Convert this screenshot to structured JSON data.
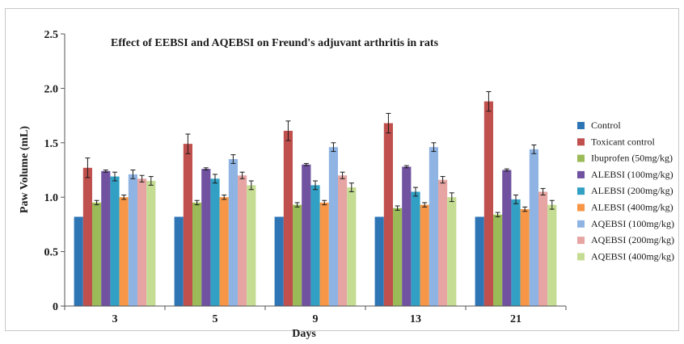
{
  "chart_data": {
    "type": "bar",
    "title": "Effect of EEBSI and AQEBSI on Freund's adjuvant arthritis in rats",
    "xlabel": "Days",
    "ylabel": "Paw Volume (mL)",
    "ylim": [
      0,
      2.5
    ],
    "yticks": [
      "0",
      "0.5",
      "1.0",
      "1.5",
      "2.0",
      "2.5"
    ],
    "categories": [
      "3",
      "5",
      "9",
      "13",
      "21"
    ],
    "grid": false,
    "legend_position": "right",
    "series": [
      {
        "name": "Control",
        "color": "#2e75b6",
        "values": [
          0.82,
          0.82,
          0.82,
          0.82,
          0.82
        ],
        "errors": [
          0,
          0,
          0,
          0,
          0
        ]
      },
      {
        "name": "Toxicant control",
        "color": "#c0504d",
        "values": [
          1.27,
          1.49,
          1.61,
          1.68,
          1.88
        ],
        "errors": [
          0.09,
          0.09,
          0.09,
          0.09,
          0.09
        ]
      },
      {
        "name": "Ibuprofen (50mg/kg)",
        "color": "#9bbb59",
        "values": [
          0.95,
          0.95,
          0.93,
          0.9,
          0.84
        ],
        "errors": [
          0.02,
          0.02,
          0.02,
          0.02,
          0.02
        ]
      },
      {
        "name": "ALEBSI (100mg/kg)",
        "color": "#7052a0",
        "values": [
          1.24,
          1.26,
          1.3,
          1.28,
          1.25
        ],
        "errors": [
          0.01,
          0.01,
          0.01,
          0.01,
          0.01
        ]
      },
      {
        "name": "ALEBSI (200mg/kg)",
        "color": "#31a0c4",
        "values": [
          1.19,
          1.17,
          1.11,
          1.05,
          0.98
        ],
        "errors": [
          0.04,
          0.04,
          0.04,
          0.04,
          0.04
        ]
      },
      {
        "name": "ALEBSI (400mg/kg)",
        "color": "#f79646",
        "values": [
          1.0,
          1.0,
          0.95,
          0.93,
          0.89
        ],
        "errors": [
          0.02,
          0.02,
          0.02,
          0.02,
          0.02
        ]
      },
      {
        "name": "AQEBSI (100mg/kg)",
        "color": "#8fb4e3",
        "values": [
          1.21,
          1.35,
          1.46,
          1.46,
          1.44
        ],
        "errors": [
          0.04,
          0.04,
          0.04,
          0.04,
          0.04
        ]
      },
      {
        "name": "AQEBSI (200mg/kg)",
        "color": "#e6a5a3",
        "values": [
          1.17,
          1.2,
          1.2,
          1.16,
          1.05
        ],
        "errors": [
          0.03,
          0.03,
          0.03,
          0.03,
          0.03
        ]
      },
      {
        "name": "AQEBSI (400mg/kg)",
        "color": "#c5dc93",
        "values": [
          1.15,
          1.11,
          1.09,
          1.0,
          0.93
        ],
        "errors": [
          0.04,
          0.04,
          0.04,
          0.04,
          0.04
        ]
      }
    ]
  }
}
